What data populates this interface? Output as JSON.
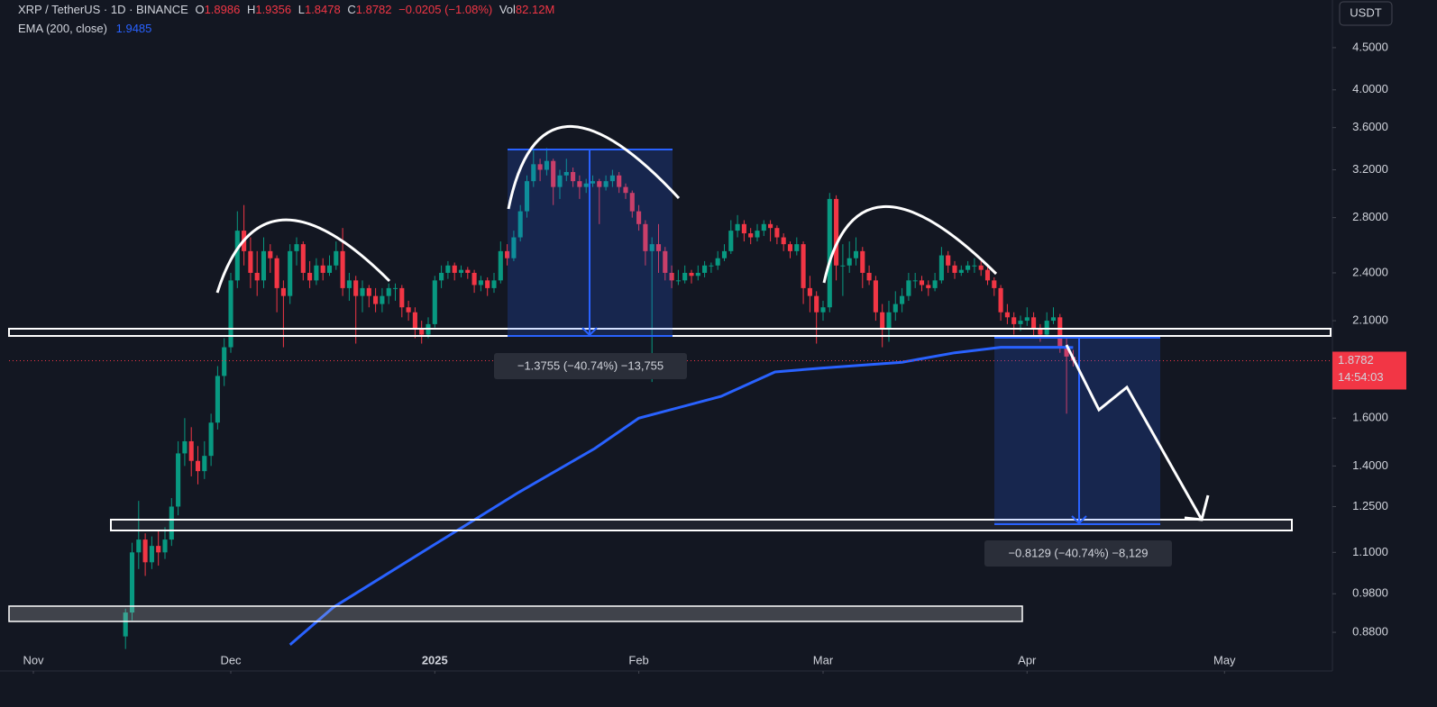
{
  "chart_data": {
    "type": "candlestick",
    "symbol": "XRP / TetherUS · 1D · BINANCE",
    "ohlc_labels": [
      "O",
      "H",
      "L",
      "C"
    ],
    "change": "−0.0205 (−1.08%)",
    "volume_label": "Vol",
    "volume": "82.12M",
    "currency": "USDT",
    "countdown": "14:54:03",
    "up_color": "#089981",
    "down_color": "#f23645",
    "log_scale": true,
    "grid": false,
    "ylim": [
      0.79,
      5.14
    ],
    "yticks": [
      {
        "value": 0.88,
        "label": "0.8800"
      },
      {
        "value": 0.98,
        "label": "0.9800"
      },
      {
        "value": 1.1,
        "label": "1.1000"
      },
      {
        "value": 1.25,
        "label": "1.2500"
      },
      {
        "value": 1.4,
        "label": "1.4000"
      },
      {
        "value": 1.6,
        "label": "1.6000"
      },
      {
        "value": 2.1,
        "label": "2.1000"
      },
      {
        "value": 2.4,
        "label": "2.4000"
      },
      {
        "value": 2.8,
        "label": "2.8000"
      },
      {
        "value": 3.2,
        "label": "3.2000"
      },
      {
        "value": 3.6,
        "label": "3.6000"
      },
      {
        "value": 4.0,
        "label": "4.0000"
      },
      {
        "value": 4.5,
        "label": "4.5000"
      }
    ],
    "xlim": [
      -17.7,
      183.4
    ],
    "xticks": [
      {
        "value": -14,
        "label": "Nov"
      },
      {
        "value": 16,
        "label": "Dec"
      },
      {
        "value": 47,
        "label": "2025"
      },
      {
        "value": 78,
        "label": "Feb"
      },
      {
        "value": 106,
        "label": "Mar"
      },
      {
        "value": 137,
        "label": "Apr"
      },
      {
        "value": 167,
        "label": "May"
      }
    ],
    "candles": [
      [
        0.87,
        0.94,
        0.84,
        0.93
      ],
      [
        0.93,
        1.13,
        0.91,
        1.1
      ],
      [
        1.1,
        1.27,
        1.05,
        1.14
      ],
      [
        1.14,
        1.16,
        1.03,
        1.07
      ],
      [
        1.07,
        1.15,
        1.05,
        1.12
      ],
      [
        1.12,
        1.17,
        1.06,
        1.1
      ],
      [
        1.1,
        1.18,
        1.08,
        1.14
      ],
      [
        1.14,
        1.28,
        1.12,
        1.25
      ],
      [
        1.25,
        1.5,
        1.22,
        1.45
      ],
      [
        1.45,
        1.6,
        1.4,
        1.5
      ],
      [
        1.5,
        1.56,
        1.36,
        1.42
      ],
      [
        1.42,
        1.48,
        1.33,
        1.38
      ],
      [
        1.38,
        1.5,
        1.35,
        1.44
      ],
      [
        1.44,
        1.62,
        1.4,
        1.58
      ],
      [
        1.58,
        1.85,
        1.55,
        1.8
      ],
      [
        1.8,
        2.0,
        1.75,
        1.95
      ],
      [
        1.95,
        2.4,
        1.92,
        2.35
      ],
      [
        2.35,
        2.85,
        2.3,
        2.7
      ],
      [
        2.7,
        2.9,
        2.45,
        2.55
      ],
      [
        2.55,
        2.65,
        2.3,
        2.4
      ],
      [
        2.4,
        2.55,
        2.25,
        2.35
      ],
      [
        2.35,
        2.65,
        2.3,
        2.55
      ],
      [
        2.55,
        2.6,
        2.4,
        2.5
      ],
      [
        2.5,
        2.52,
        2.15,
        2.3
      ],
      [
        2.3,
        2.35,
        1.95,
        2.25
      ],
      [
        2.25,
        2.6,
        2.2,
        2.55
      ],
      [
        2.55,
        2.65,
        2.45,
        2.6
      ],
      [
        2.6,
        2.62,
        2.35,
        2.4
      ],
      [
        2.4,
        2.48,
        2.3,
        2.35
      ],
      [
        2.35,
        2.5,
        2.32,
        2.45
      ],
      [
        2.45,
        2.5,
        2.35,
        2.4
      ],
      [
        2.4,
        2.52,
        2.38,
        2.45
      ],
      [
        2.45,
        2.62,
        2.42,
        2.55
      ],
      [
        2.55,
        2.72,
        2.25,
        2.3
      ],
      [
        2.3,
        2.4,
        2.22,
        2.35
      ],
      [
        2.35,
        2.38,
        1.97,
        2.25
      ],
      [
        2.25,
        2.35,
        2.15,
        2.3
      ],
      [
        2.3,
        2.32,
        2.18,
        2.25
      ],
      [
        2.25,
        2.3,
        2.15,
        2.2
      ],
      [
        2.2,
        2.3,
        2.15,
        2.25
      ],
      [
        2.25,
        2.33,
        2.2,
        2.3
      ],
      [
        2.3,
        2.33,
        2.22,
        2.3
      ],
      [
        2.3,
        2.32,
        2.12,
        2.18
      ],
      [
        2.18,
        2.22,
        2.1,
        2.15
      ],
      [
        2.15,
        2.18,
        2.0,
        2.05
      ],
      [
        2.05,
        2.1,
        1.97,
        2.02
      ],
      [
        2.02,
        2.12,
        2.0,
        2.08
      ],
      [
        2.08,
        2.38,
        2.06,
        2.35
      ],
      [
        2.35,
        2.45,
        2.3,
        2.4
      ],
      [
        2.4,
        2.48,
        2.36,
        2.45
      ],
      [
        2.45,
        2.47,
        2.35,
        2.4
      ],
      [
        2.4,
        2.45,
        2.37,
        2.42
      ],
      [
        2.42,
        2.44,
        2.36,
        2.4
      ],
      [
        2.4,
        2.42,
        2.27,
        2.32
      ],
      [
        2.32,
        2.38,
        2.28,
        2.35
      ],
      [
        2.35,
        2.37,
        2.25,
        2.3
      ],
      [
        2.3,
        2.4,
        2.27,
        2.35
      ],
      [
        2.35,
        2.62,
        2.33,
        2.55
      ],
      [
        2.55,
        2.6,
        2.45,
        2.5
      ],
      [
        2.5,
        2.7,
        2.48,
        2.65
      ],
      [
        2.65,
        2.9,
        2.62,
        2.85
      ],
      [
        2.85,
        3.15,
        2.8,
        3.1
      ],
      [
        3.1,
        3.38,
        3.05,
        3.25
      ],
      [
        3.25,
        3.3,
        3.1,
        3.2
      ],
      [
        3.2,
        3.4,
        3.15,
        3.28
      ],
      [
        3.28,
        3.3,
        2.9,
        3.05
      ],
      [
        3.05,
        3.2,
        2.95,
        3.15
      ],
      [
        3.15,
        3.3,
        3.1,
        3.18
      ],
      [
        3.18,
        3.22,
        3.05,
        3.1
      ],
      [
        3.1,
        3.15,
        2.95,
        3.05
      ],
      [
        3.05,
        3.12,
        3.0,
        3.08
      ],
      [
        3.08,
        3.15,
        3.05,
        3.1
      ],
      [
        3.1,
        3.12,
        2.75,
        3.05
      ],
      [
        3.05,
        3.15,
        3.02,
        3.1
      ],
      [
        3.1,
        3.2,
        3.05,
        3.15
      ],
      [
        3.15,
        3.18,
        3.0,
        3.05
      ],
      [
        3.05,
        3.08,
        2.95,
        3.0
      ],
      [
        3.0,
        3.02,
        2.8,
        2.85
      ],
      [
        2.85,
        2.9,
        2.7,
        2.75
      ],
      [
        2.75,
        2.78,
        2.45,
        2.55
      ],
      [
        2.55,
        2.65,
        1.77,
        2.6
      ],
      [
        2.6,
        2.75,
        2.4,
        2.55
      ],
      [
        2.55,
        2.58,
        2.35,
        2.4
      ],
      [
        2.4,
        2.45,
        2.3,
        2.35
      ],
      [
        2.35,
        2.42,
        2.32,
        2.35
      ],
      [
        2.35,
        2.45,
        2.33,
        2.4
      ],
      [
        2.4,
        2.42,
        2.33,
        2.38
      ],
      [
        2.38,
        2.45,
        2.35,
        2.4
      ],
      [
        2.4,
        2.48,
        2.37,
        2.45
      ],
      [
        2.45,
        2.47,
        2.4,
        2.45
      ],
      [
        2.45,
        2.55,
        2.42,
        2.5
      ],
      [
        2.5,
        2.6,
        2.48,
        2.55
      ],
      [
        2.55,
        2.78,
        2.53,
        2.7
      ],
      [
        2.7,
        2.82,
        2.65,
        2.75
      ],
      [
        2.75,
        2.78,
        2.62,
        2.68
      ],
      [
        2.68,
        2.72,
        2.6,
        2.65
      ],
      [
        2.65,
        2.75,
        2.62,
        2.7
      ],
      [
        2.7,
        2.78,
        2.66,
        2.75
      ],
      [
        2.75,
        2.78,
        2.62,
        2.72
      ],
      [
        2.72,
        2.74,
        2.6,
        2.65
      ],
      [
        2.65,
        2.68,
        2.55,
        2.6
      ],
      [
        2.6,
        2.62,
        2.5,
        2.55
      ],
      [
        2.55,
        2.65,
        2.52,
        2.6
      ],
      [
        2.6,
        2.62,
        2.2,
        2.3
      ],
      [
        2.3,
        2.38,
        2.15,
        2.25
      ],
      [
        2.25,
        2.28,
        1.97,
        2.15
      ],
      [
        2.15,
        2.22,
        2.1,
        2.18
      ],
      [
        2.18,
        3.0,
        2.15,
        2.95
      ],
      [
        2.95,
        2.98,
        2.35,
        2.45
      ],
      [
        2.45,
        2.6,
        2.25,
        2.45
      ],
      [
        2.45,
        2.62,
        2.4,
        2.5
      ],
      [
        2.5,
        2.65,
        2.45,
        2.55
      ],
      [
        2.55,
        2.58,
        2.3,
        2.4
      ],
      [
        2.4,
        2.45,
        2.32,
        2.35
      ],
      [
        2.35,
        2.38,
        2.1,
        2.15
      ],
      [
        2.15,
        2.2,
        1.95,
        2.05
      ],
      [
        2.05,
        2.22,
        1.98,
        2.15
      ],
      [
        2.15,
        2.28,
        2.1,
        2.2
      ],
      [
        2.2,
        2.3,
        2.15,
        2.25
      ],
      [
        2.25,
        2.4,
        2.22,
        2.35
      ],
      [
        2.35,
        2.4,
        2.3,
        2.35
      ],
      [
        2.35,
        2.38,
        2.28,
        2.32
      ],
      [
        2.32,
        2.35,
        2.25,
        2.3
      ],
      [
        2.3,
        2.4,
        2.28,
        2.35
      ],
      [
        2.35,
        2.58,
        2.33,
        2.52
      ],
      [
        2.52,
        2.55,
        2.4,
        2.45
      ],
      [
        2.45,
        2.48,
        2.36,
        2.4
      ],
      [
        2.4,
        2.45,
        2.38,
        2.42
      ],
      [
        2.42,
        2.48,
        2.4,
        2.45
      ],
      [
        2.45,
        2.5,
        2.4,
        2.45
      ],
      [
        2.45,
        2.48,
        2.38,
        2.42
      ],
      [
        2.42,
        2.44,
        2.32,
        2.35
      ],
      [
        2.35,
        2.37,
        2.25,
        2.3
      ],
      [
        2.3,
        2.32,
        2.1,
        2.15
      ],
      [
        2.15,
        2.2,
        2.08,
        2.12
      ],
      [
        2.12,
        2.15,
        2.02,
        2.08
      ],
      [
        2.08,
        2.13,
        2.04,
        2.1
      ],
      [
        2.1,
        2.18,
        2.07,
        2.12
      ],
      [
        2.12,
        2.15,
        2.0,
        2.05
      ],
      [
        2.05,
        2.08,
        1.98,
        2.02
      ],
      [
        2.02,
        2.15,
        2.0,
        2.1
      ],
      [
        2.1,
        2.18,
        2.08,
        2.12
      ],
      [
        2.12,
        2.14,
        1.92,
        1.95
      ],
      [
        1.95,
        2.0,
        1.62,
        1.9
      ],
      [
        1.8986,
        1.9356,
        1.8478,
        1.8782
      ]
    ],
    "ema": {
      "name": "EMA (200, close)",
      "color": "#2962ff",
      "x": [
        25,
        31.6,
        47,
        59.7,
        71.3,
        78,
        90.5,
        98.7,
        105.7,
        118,
        126,
        133,
        142.6,
        144
      ],
      "values": [
        0.85,
        0.944,
        1.125,
        1.3,
        1.47,
        1.6,
        1.7,
        1.82,
        1.84,
        1.87,
        1.92,
        1.95,
        1.95,
        1.9485
      ]
    },
    "annotations": [
      "−1.3755 (−40.74%) −13,755",
      "−0.8129 (−40.74%) −8,129"
    ]
  }
}
